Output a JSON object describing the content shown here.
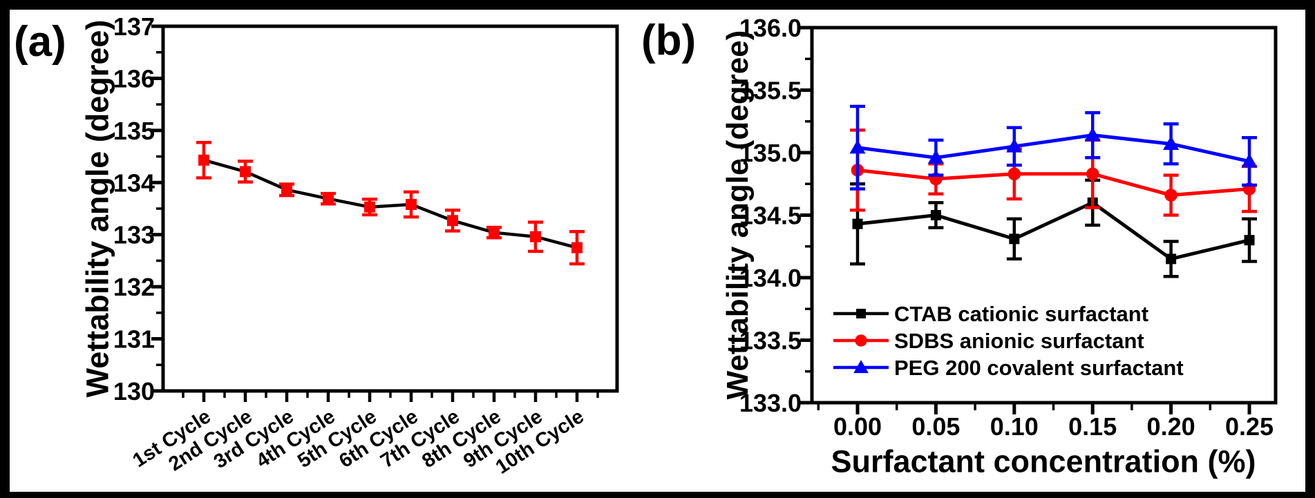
{
  "figure": {
    "background": "#ffffff",
    "border_color": "#000000",
    "panels": {
      "a_label": "(a)",
      "b_label": "(b)"
    }
  },
  "chart_data": [
    {
      "panel": "(a)",
      "type": "line",
      "xlabel": "",
      "ylabel": "Wettability angle (degree)",
      "ylim": [
        130,
        137
      ],
      "yticks": [
        130,
        131,
        132,
        133,
        134,
        135,
        136,
        137
      ],
      "ytick_labels": [
        "130",
        "131",
        "132",
        "133",
        "134",
        "135",
        "136",
        "137"
      ],
      "y_minor_step": 0.5,
      "grid": false,
      "legend": false,
      "categories": [
        "1st Cycle",
        "2nd Cycle",
        "3rd Cycle",
        "4th Cycle",
        "5th Cycle",
        "6th Cycle",
        "7th Cycle",
        "8th Cycle",
        "9th Cycle",
        "10th Cycle"
      ],
      "series": [
        {
          "marker": "square",
          "marker_color": "#ff0000",
          "line_color": "#000000",
          "error_color": "#ff0000",
          "values": [
            134.43,
            134.21,
            133.86,
            133.69,
            133.53,
            133.58,
            133.27,
            133.04,
            132.96,
            132.75
          ],
          "errors": [
            0.34,
            0.2,
            0.11,
            0.1,
            0.15,
            0.24,
            0.2,
            0.1,
            0.28,
            0.31
          ]
        }
      ]
    },
    {
      "panel": "(b)",
      "type": "line",
      "xlabel": "Surfactant concentration (%)",
      "ylabel": "Wettability angle (degree)",
      "ylim": [
        133.0,
        136.0
      ],
      "yticks": [
        133.0,
        133.5,
        134.0,
        134.5,
        135.0,
        135.5,
        136.0
      ],
      "ytick_labels": [
        "133.0",
        "133.5",
        "134.0",
        "134.5",
        "135.0",
        "135.5",
        "136.0"
      ],
      "y_minor_step": 0.25,
      "x": [
        0.0,
        0.05,
        0.1,
        0.15,
        0.2,
        0.25
      ],
      "xtick_labels": [
        "0.00",
        "0.05",
        "0.10",
        "0.15",
        "0.20",
        "0.25"
      ],
      "grid": false,
      "legend_position": "inside lower-left",
      "series": [
        {
          "name": "CTAB cationic surfactant",
          "marker": "square",
          "color": "#000000",
          "values": [
            134.43,
            134.5,
            134.31,
            134.6,
            134.15,
            134.3
          ],
          "errors": [
            0.32,
            0.1,
            0.16,
            0.18,
            0.14,
            0.17
          ]
        },
        {
          "name": "SDBS anionic surfactant",
          "marker": "circle",
          "color": "#ff0000",
          "values": [
            134.86,
            134.79,
            134.83,
            134.83,
            134.66,
            134.71
          ],
          "errors": [
            0.32,
            0.12,
            0.2,
            0.27,
            0.16,
            0.18
          ]
        },
        {
          "name": "PEG 200 covalent surfactant",
          "marker": "triangle",
          "color": "#0000ff",
          "values": [
            135.04,
            134.96,
            135.05,
            135.14,
            135.07,
            134.93
          ],
          "errors": [
            0.33,
            0.14,
            0.15,
            0.18,
            0.16,
            0.19
          ]
        }
      ]
    }
  ]
}
